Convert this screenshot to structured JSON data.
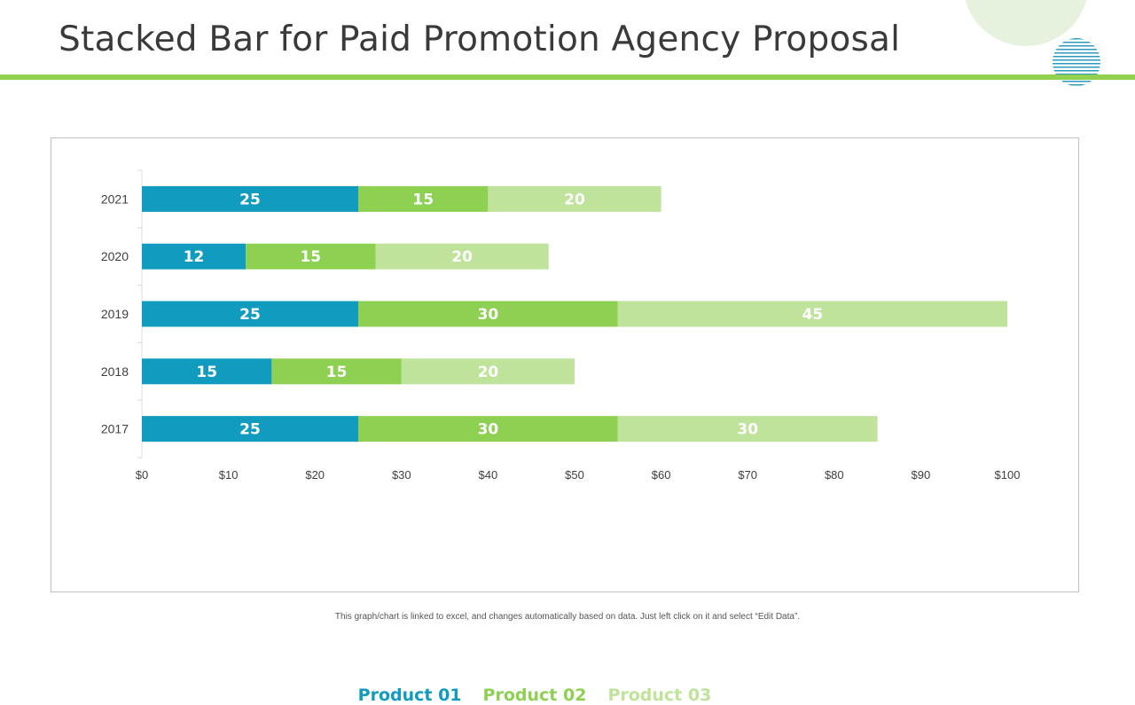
{
  "slide": {
    "title": "Stacked Bar for Paid Promotion Agency Proposal",
    "footnote": "This graph/chart is linked to excel, and changes automatically based on data. Just left click on it and select “Edit Data”."
  },
  "colors": {
    "accent_green": "#92d050",
    "product_01": "#119cbf",
    "product_02": "#8ed152",
    "product_03": "#bfe39a",
    "deco_circle": "#e6f2dd",
    "deco_stripes": "#2a9bbd"
  },
  "chart_data": {
    "type": "bar",
    "orientation": "horizontal",
    "stacked": true,
    "categories": [
      "2017",
      "2018",
      "2019",
      "2020",
      "2021"
    ],
    "series": [
      {
        "name": "Product 01",
        "values": [
          25,
          15,
          25,
          12,
          25
        ],
        "color": "#119cbf"
      },
      {
        "name": "Product 02",
        "values": [
          30,
          15,
          30,
          15,
          15
        ],
        "color": "#8ed152"
      },
      {
        "name": "Product 03",
        "values": [
          30,
          20,
          45,
          20,
          20
        ],
        "color": "#bfe39a"
      }
    ],
    "xlim": [
      0,
      100
    ],
    "xticks": [
      "$0",
      "$10",
      "$20",
      "$30",
      "$40",
      "$50",
      "$60",
      "$70",
      "$80",
      "$90",
      "$100"
    ],
    "data_labels": true,
    "grid": false,
    "legend_position": "bottom"
  }
}
